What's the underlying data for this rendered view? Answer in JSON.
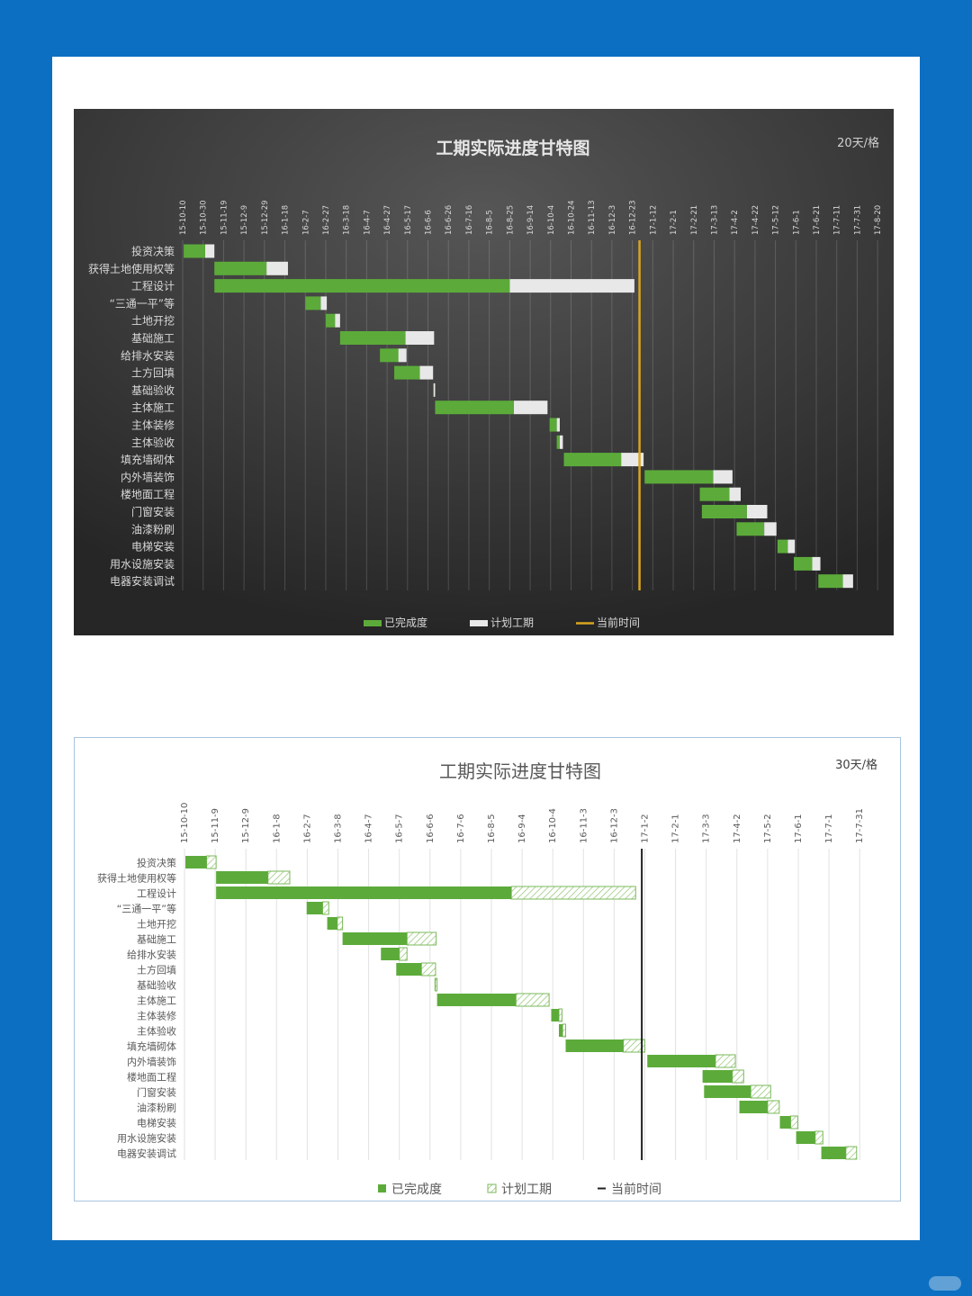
{
  "chart_data": [
    {
      "type": "gantt",
      "theme": "dark",
      "title": "工期实际进度甘特图",
      "scale_label": "20天/格",
      "x_ticks": [
        "15-10-10",
        "15-10-30",
        "15-11-19",
        "15-12-9",
        "15-12-29",
        "16-1-18",
        "16-2-7",
        "16-2-27",
        "16-3-18",
        "16-4-7",
        "16-4-27",
        "16-5-17",
        "16-6-6",
        "16-6-26",
        "16-7-16",
        "16-8-5",
        "16-8-25",
        "16-9-14",
        "16-10-4",
        "16-10-24",
        "16-11-13",
        "16-12-3",
        "16-12-23",
        "17-1-12",
        "17-2-1",
        "17-2-21",
        "17-3-13",
        "17-4-2",
        "17-4-22",
        "17-5-12",
        "17-6-1",
        "17-6-21",
        "17-7-11",
        "17-7-31",
        "17-8-20"
      ],
      "current_time_tick": 22.35,
      "legend": [
        "已完成度",
        "计划工期",
        "当前时间"
      ],
      "colors": {
        "completed": "#5cab3a",
        "planned": "#e8e8e8",
        "current": "#d9a520"
      },
      "tasks": [
        {
          "name": "投资决策",
          "start": 0.05,
          "done": 1.1,
          "plan": 1.55
        },
        {
          "name": "获得土地使用权等",
          "start": 1.55,
          "done": 4.1,
          "plan": 5.15
        },
        {
          "name": "工程设计",
          "start": 1.55,
          "done": 16.0,
          "plan": 22.1
        },
        {
          "name": "“三通一平”等",
          "start": 6.0,
          "done": 6.75,
          "plan": 7.05
        },
        {
          "name": "土地开挖",
          "start": 7.0,
          "done": 7.45,
          "plan": 7.7
        },
        {
          "name": "基础施工",
          "start": 7.7,
          "done": 10.9,
          "plan": 12.3
        },
        {
          "name": "给排水安装",
          "start": 9.65,
          "done": 10.55,
          "plan": 10.95
        },
        {
          "name": "土方回填",
          "start": 10.35,
          "done": 11.6,
          "plan": 12.25
        },
        {
          "name": "基础验收",
          "start": 12.25,
          "done": 12.28,
          "plan": 12.35
        },
        {
          "name": "主体施工",
          "start": 12.35,
          "done": 16.2,
          "plan": 17.85
        },
        {
          "name": "主体装修",
          "start": 17.95,
          "done": 18.3,
          "plan": 18.45
        },
        {
          "name": "主体验收",
          "start": 18.3,
          "done": 18.45,
          "plan": 18.6
        },
        {
          "name": "填充墙砌体",
          "start": 18.65,
          "done": 21.45,
          "plan": 22.55
        },
        {
          "name": "内外墙装饰",
          "start": 22.6,
          "done": 25.95,
          "plan": 26.9
        },
        {
          "name": "楼地面工程",
          "start": 25.3,
          "done": 26.75,
          "plan": 27.3
        },
        {
          "name": "门窗安装",
          "start": 25.4,
          "done": 27.6,
          "plan": 28.6
        },
        {
          "name": "油漆粉刷",
          "start": 27.1,
          "done": 28.45,
          "plan": 29.05
        },
        {
          "name": "电梯安装",
          "start": 29.1,
          "done": 29.6,
          "plan": 29.95
        },
        {
          "name": "用水设施安装",
          "start": 29.9,
          "done": 30.8,
          "plan": 31.2
        },
        {
          "name": "电器安装调试",
          "start": 31.1,
          "done": 32.3,
          "plan": 32.8
        }
      ]
    },
    {
      "type": "gantt",
      "theme": "light",
      "title": "工期实际进度甘特图",
      "scale_label": "30天/格",
      "x_ticks": [
        "15-10-10",
        "15-11-9",
        "15-12-9",
        "16-1-8",
        "16-2-7",
        "16-3-8",
        "16-4-7",
        "16-5-7",
        "16-6-6",
        "16-7-6",
        "16-8-5",
        "16-9-4",
        "16-10-4",
        "16-11-3",
        "16-12-3",
        "17-1-2",
        "17-2-1",
        "17-3-3",
        "17-4-2",
        "17-5-2",
        "17-6-1",
        "17-7-1",
        "17-7-31"
      ],
      "current_time_tick": 14.9,
      "legend": [
        "已完成度",
        "计划工期",
        "当前时间"
      ],
      "colors": {
        "completed": "#5cab3a",
        "planned": "#ffffff",
        "current": "#222222"
      },
      "tasks": [
        {
          "name": "投资决策",
          "start": 0.03,
          "done": 0.72,
          "plan": 1.03
        },
        {
          "name": "获得土地使用权等",
          "start": 1.03,
          "done": 2.72,
          "plan": 3.43
        },
        {
          "name": "工程设计",
          "start": 1.03,
          "done": 10.65,
          "plan": 14.7
        },
        {
          "name": "“三通一平”等",
          "start": 3.98,
          "done": 4.5,
          "plan": 4.7
        },
        {
          "name": "土地开挖",
          "start": 4.65,
          "done": 4.98,
          "plan": 5.15
        },
        {
          "name": "基础施工",
          "start": 5.15,
          "done": 7.25,
          "plan": 8.2
        },
        {
          "name": "给排水安装",
          "start": 6.4,
          "done": 7.0,
          "plan": 7.25
        },
        {
          "name": "土方回填",
          "start": 6.9,
          "done": 7.72,
          "plan": 8.18
        },
        {
          "name": "基础验收",
          "start": 8.15,
          "done": 8.17,
          "plan": 8.23
        },
        {
          "name": "主体施工",
          "start": 8.23,
          "done": 10.8,
          "plan": 11.88
        },
        {
          "name": "主体装修",
          "start": 11.95,
          "done": 12.2,
          "plan": 12.3
        },
        {
          "name": "主体验收",
          "start": 12.2,
          "done": 12.32,
          "plan": 12.42
        },
        {
          "name": "填充墙砌体",
          "start": 12.42,
          "done": 14.3,
          "plan": 15.0
        },
        {
          "name": "内外墙装饰",
          "start": 15.08,
          "done": 17.3,
          "plan": 17.95
        },
        {
          "name": "楼地面工程",
          "start": 16.88,
          "done": 17.85,
          "plan": 18.22
        },
        {
          "name": "门窗安装",
          "start": 16.93,
          "done": 18.45,
          "plan": 19.1
        },
        {
          "name": "油漆粉刷",
          "start": 18.08,
          "done": 19.0,
          "plan": 19.38
        },
        {
          "name": "电梯安装",
          "start": 19.4,
          "done": 19.75,
          "plan": 19.98
        },
        {
          "name": "用水设施安装",
          "start": 19.93,
          "done": 20.55,
          "plan": 20.8
        },
        {
          "name": "电器安装调试",
          "start": 20.75,
          "done": 21.55,
          "plan": 21.9
        }
      ]
    }
  ]
}
